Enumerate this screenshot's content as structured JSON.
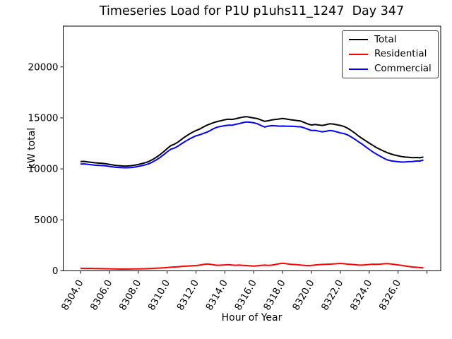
{
  "figure": {
    "background": "#ffffff"
  },
  "chart_data": {
    "type": "line",
    "title": "Timeseries Load for P1U p1uhs11_1247  Day 347",
    "xlabel": "Hour of Year",
    "ylabel": "kW total",
    "xlim": [
      8302.8,
      8328.95
    ],
    "ylim": [
      0,
      24000
    ],
    "grid": false,
    "legend_position": "upper right",
    "xticks": [
      {
        "value": 8304,
        "label": "8304.0"
      },
      {
        "value": 8306,
        "label": "8306.0"
      },
      {
        "value": 8308,
        "label": "8308.0"
      },
      {
        "value": 8310,
        "label": "8310.0"
      },
      {
        "value": 8312,
        "label": "8312.0"
      },
      {
        "value": 8314,
        "label": "8314.0"
      },
      {
        "value": 8316,
        "label": "8316.0"
      },
      {
        "value": 8318,
        "label": "8318.0"
      },
      {
        "value": 8320,
        "label": "8320.0"
      },
      {
        "value": 8322,
        "label": "8322.0"
      },
      {
        "value": 8324,
        "label": "8324.0"
      },
      {
        "value": 8326,
        "label": "8326.0"
      },
      {
        "value": 8328,
        "label": ""
      }
    ],
    "yticks": [
      {
        "value": 0,
        "label": "0"
      },
      {
        "value": 5000,
        "label": "5000"
      },
      {
        "value": 10000,
        "label": "10000"
      },
      {
        "value": 15000,
        "label": "15000"
      },
      {
        "value": 20000,
        "label": "20000"
      }
    ],
    "x": [
      8304.0,
      8304.25,
      8304.5,
      8304.75,
      8305.0,
      8305.25,
      8305.5,
      8305.75,
      8306.0,
      8306.25,
      8306.5,
      8306.75,
      8307.0,
      8307.25,
      8307.5,
      8307.75,
      8308.0,
      8308.25,
      8308.5,
      8308.75,
      8309.0,
      8309.25,
      8309.5,
      8309.75,
      8310.0,
      8310.25,
      8310.5,
      8310.75,
      8311.0,
      8311.25,
      8311.5,
      8311.75,
      8312.0,
      8312.25,
      8312.5,
      8312.75,
      8313.0,
      8313.25,
      8313.5,
      8313.75,
      8314.0,
      8314.25,
      8314.5,
      8314.75,
      8315.0,
      8315.25,
      8315.5,
      8315.75,
      8316.0,
      8316.25,
      8316.5,
      8316.75,
      8317.0,
      8317.25,
      8317.5,
      8317.75,
      8318.0,
      8318.25,
      8318.5,
      8318.75,
      8319.0,
      8319.25,
      8319.5,
      8319.75,
      8320.0,
      8320.25,
      8320.5,
      8320.75,
      8321.0,
      8321.25,
      8321.5,
      8321.75,
      8322.0,
      8322.25,
      8322.5,
      8322.75,
      8323.0,
      8323.25,
      8323.5,
      8323.75,
      8324.0,
      8324.25,
      8324.5,
      8324.75,
      8325.0,
      8325.25,
      8325.5,
      8325.75,
      8326.0,
      8326.25,
      8326.5,
      8326.75,
      8327.0,
      8327.25,
      8327.5,
      8327.75
    ],
    "series": [
      {
        "name": "Total",
        "color": "#000000",
        "values": [
          10720,
          10735,
          10690,
          10640,
          10595,
          10570,
          10540,
          10500,
          10445,
          10380,
          10330,
          10300,
          10280,
          10285,
          10310,
          10360,
          10440,
          10520,
          10610,
          10740,
          10920,
          11140,
          11390,
          11680,
          11990,
          12280,
          12420,
          12630,
          12900,
          13150,
          13380,
          13580,
          13760,
          13900,
          14100,
          14280,
          14420,
          14550,
          14650,
          14730,
          14820,
          14880,
          14850,
          14920,
          15000,
          15080,
          15120,
          15060,
          14990,
          14930,
          14800,
          14660,
          14720,
          14800,
          14850,
          14890,
          14940,
          14890,
          14830,
          14790,
          14740,
          14690,
          14550,
          14400,
          14300,
          14350,
          14300,
          14260,
          14330,
          14420,
          14400,
          14330,
          14260,
          14160,
          13990,
          13760,
          13510,
          13230,
          12990,
          12760,
          12530,
          12310,
          12090,
          11910,
          11740,
          11590,
          11460,
          11360,
          11280,
          11210,
          11160,
          11130,
          11100,
          11120,
          11090,
          11160
        ]
      },
      {
        "name": "Residential",
        "color": "#ff0000",
        "values": [
          250,
          245,
          235,
          240,
          230,
          220,
          215,
          210,
          200,
          190,
          180,
          175,
          170,
          175,
          180,
          185,
          190,
          200,
          210,
          225,
          240,
          260,
          280,
          300,
          320,
          350,
          380,
          400,
          430,
          460,
          480,
          500,
          520,
          560,
          620,
          680,
          640,
          580,
          540,
          560,
          580,
          600,
          570,
          550,
          560,
          540,
          520,
          490,
          470,
          500,
          540,
          560,
          530,
          560,
          620,
          700,
          740,
          700,
          650,
          620,
          600,
          560,
          530,
          510,
          540,
          570,
          600,
          620,
          640,
          660,
          680,
          700,
          730,
          700,
          660,
          630,
          600,
          570,
          560,
          590,
          620,
          650,
          640,
          660,
          690,
          710,
          670,
          620,
          580,
          540,
          480,
          420,
          380,
          350,
          320,
          290
        ]
      },
      {
        "name": "Commercial",
        "color": "#0000ff",
        "values": [
          10470,
          10490,
          10455,
          10400,
          10365,
          10350,
          10325,
          10290,
          10245,
          10190,
          10150,
          10125,
          10110,
          10110,
          10130,
          10175,
          10250,
          10320,
          10400,
          10515,
          10680,
          10880,
          11110,
          11380,
          11670,
          11930,
          12040,
          12230,
          12470,
          12690,
          12900,
          13080,
          13240,
          13340,
          13480,
          13600,
          13780,
          13970,
          14110,
          14170,
          14240,
          14280,
          14280,
          14370,
          14440,
          14540,
          14600,
          14570,
          14520,
          14430,
          14260,
          14100,
          14190,
          14240,
          14230,
          14190,
          14200,
          14190,
          14180,
          14170,
          14140,
          14130,
          14020,
          13890,
          13760,
          13780,
          13700,
          13640,
          13690,
          13760,
          13720,
          13630,
          13530,
          13460,
          13330,
          13130,
          12910,
          12660,
          12430,
          12170,
          11910,
          11660,
          11450,
          11250,
          11050,
          10880,
          10790,
          10740,
          10700,
          10670,
          10680,
          10710,
          10720,
          10770,
          10770,
          10870
        ]
      }
    ]
  }
}
